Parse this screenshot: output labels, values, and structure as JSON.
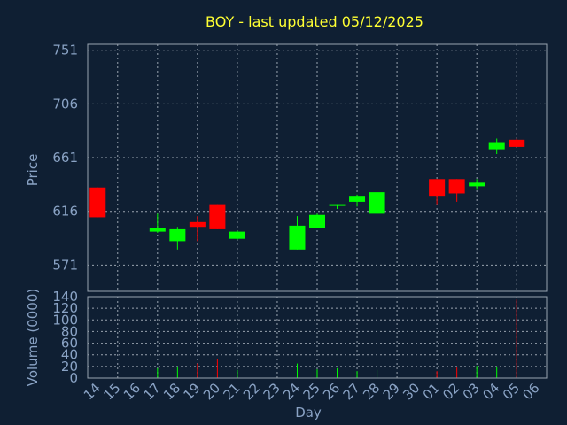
{
  "chart_data": {
    "type": "candlestick",
    "title": "BOY - last updated 05/12/2025",
    "colors": {
      "up": "#00ff00",
      "down": "#ff0000",
      "grid": "#9aa4b0",
      "frame": "#9aa4b0",
      "title": "#ffff33",
      "text": "#8aa3c5",
      "background": "#0f1f33"
    },
    "x_tick_labels": [
      "14",
      "15",
      "16",
      "17",
      "18",
      "19",
      "20",
      "21",
      "22",
      "23",
      "24",
      "25",
      "26",
      "27",
      "28",
      "29",
      "30",
      "01",
      "02",
      "03",
      "04",
      "05",
      "06"
    ],
    "xlabel": "Day",
    "price_panel": {
      "ylabel": "Price",
      "ylim": [
        549,
        756
      ],
      "yticks": [
        571,
        616,
        661,
        706,
        751
      ],
      "grid": true
    },
    "volume_panel": {
      "ylabel": "Volume (0000)",
      "ylim": [
        0,
        140
      ],
      "yticks": [
        0,
        20,
        40,
        60,
        80,
        100,
        120,
        140
      ],
      "grid": true
    },
    "candles": [
      {
        "day": "14",
        "open": 636,
        "high": 636,
        "low": 611,
        "close": 611,
        "volume": 0
      },
      {
        "day": "17",
        "open": 599,
        "high": 614,
        "low": 598,
        "close": 602,
        "volume": 17
      },
      {
        "day": "18",
        "open": 591,
        "high": 603,
        "low": 584,
        "close": 601,
        "volume": 20
      },
      {
        "day": "19",
        "open": 607,
        "high": 612,
        "low": 591,
        "close": 603,
        "volume": 25
      },
      {
        "day": "20",
        "open": 622,
        "high": 622,
        "low": 601,
        "close": 601,
        "volume": 32
      },
      {
        "day": "21",
        "open": 593,
        "high": 600,
        "low": 592,
        "close": 599,
        "volume": 14
      },
      {
        "day": "24",
        "open": 584,
        "high": 612,
        "low": 584,
        "close": 604,
        "volume": 25
      },
      {
        "day": "25",
        "open": 602,
        "high": 614,
        "low": 602,
        "close": 613,
        "volume": 15
      },
      {
        "day": "26",
        "open": 621,
        "high": 622,
        "low": 618,
        "close": 622,
        "volume": 17
      },
      {
        "day": "27",
        "open": 624,
        "high": 630,
        "low": 620,
        "close": 629,
        "volume": 12
      },
      {
        "day": "28",
        "open": 614,
        "high": 632,
        "low": 614,
        "close": 632,
        "volume": 14
      },
      {
        "day": "01",
        "open": 643,
        "high": 643,
        "low": 622,
        "close": 629,
        "volume": 12
      },
      {
        "day": "02",
        "open": 643,
        "high": 643,
        "low": 624,
        "close": 631,
        "volume": 18
      },
      {
        "day": "03",
        "open": 637,
        "high": 643,
        "low": 634,
        "close": 640,
        "volume": 21
      },
      {
        "day": "04",
        "open": 668,
        "high": 677,
        "low": 664,
        "close": 674,
        "volume": 20
      },
      {
        "day": "05",
        "open": 676,
        "high": 677,
        "low": 670,
        "close": 670,
        "volume": 135
      }
    ]
  }
}
